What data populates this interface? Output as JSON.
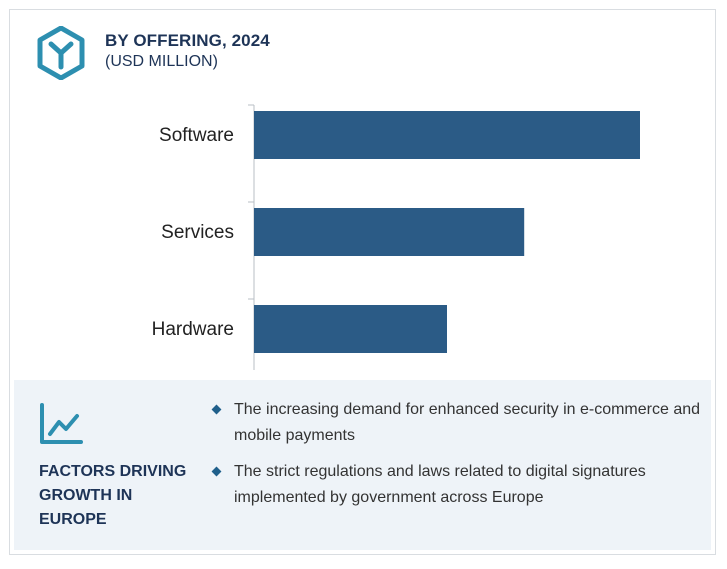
{
  "header": {
    "title": "BY OFFERING, 2024",
    "subtitle": "(USD MILLION)"
  },
  "colors": {
    "bar": "#2b5b86",
    "brand": "#2d8fb0",
    "heading": "#1e3457",
    "panel": "#eef3f8"
  },
  "chart_data": {
    "type": "bar",
    "orientation": "horizontal",
    "categories": [
      "Software",
      "Services",
      "Hardware"
    ],
    "values": [
      100,
      70,
      50
    ],
    "xlim": [
      0,
      100
    ],
    "grid": false,
    "legend": "none"
  },
  "factors": {
    "title": "FACTORS DRIVING\nGROWTH IN\nEUROPE",
    "items": [
      "The increasing demand for enhanced security in e-commerce and mobile payments",
      "The strict regulations and laws related to digital signatures implemented by government across Europe"
    ]
  },
  "icons": {
    "logo": "cube-logo-icon",
    "factors": "trend-chart-icon"
  }
}
